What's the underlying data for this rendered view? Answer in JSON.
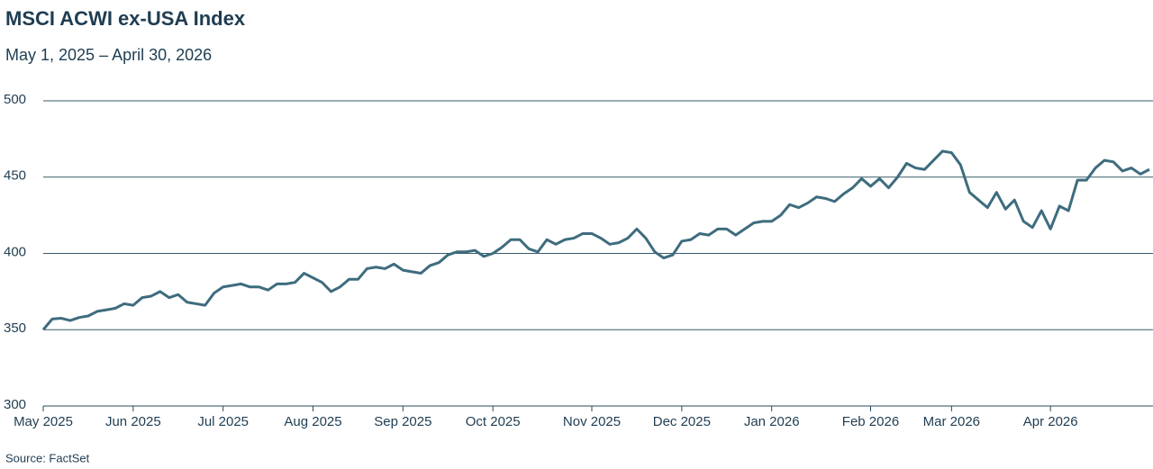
{
  "chart_data": {
    "type": "line",
    "title": "MSCI ACWI ex-USA Index",
    "subtitle": "May 1, 2025 – April 30, 2026",
    "source": "Source: FactSet",
    "categories": [
      "May 2025",
      null,
      null,
      null,
      null,
      null,
      null,
      null,
      null,
      null,
      "Jun 2025",
      null,
      null,
      null,
      null,
      null,
      null,
      null,
      null,
      null,
      "Jul 2025",
      null,
      null,
      null,
      null,
      null,
      null,
      null,
      null,
      null,
      "Aug 2025",
      null,
      null,
      null,
      null,
      null,
      null,
      null,
      null,
      null,
      "Sep 2025",
      null,
      null,
      null,
      null,
      null,
      null,
      null,
      null,
      null,
      "Oct 2025",
      null,
      null,
      null,
      null,
      null,
      null,
      null,
      null,
      null,
      null,
      "Nov 2025",
      null,
      null,
      null,
      null,
      null,
      null,
      null,
      null,
      null,
      "Dec 2025",
      null,
      null,
      null,
      null,
      null,
      null,
      null,
      null,
      null,
      "Jan 2026",
      null,
      null,
      null,
      null,
      null,
      null,
      null,
      null,
      null,
      null,
      "Feb 2026",
      null,
      null,
      null,
      null,
      null,
      null,
      null,
      null,
      "Mar 2026",
      null,
      null,
      null,
      null,
      null,
      null,
      null,
      null,
      null,
      null,
      "Apr 2026",
      null,
      null,
      null,
      null,
      null,
      null,
      null,
      null,
      null,
      null,
      null
    ],
    "series": [
      {
        "color": "#3e6c7e",
        "values": [
          350,
          357,
          357.5,
          356,
          358,
          359,
          362,
          363,
          364,
          367,
          366,
          371,
          372,
          375,
          371,
          373,
          368,
          367,
          366,
          374,
          378,
          379,
          380,
          378,
          378,
          376,
          380,
          380,
          381,
          387,
          384,
          381,
          375,
          378,
          383,
          383,
          390,
          391,
          390,
          393,
          389,
          388,
          387,
          392,
          394,
          399,
          401,
          401,
          402,
          398,
          400,
          404,
          409,
          409,
          403,
          401,
          409,
          406,
          409,
          410,
          413,
          413,
          410,
          406,
          407,
          410,
          416,
          410,
          401,
          397,
          399,
          408,
          409,
          413,
          412,
          416,
          416,
          412,
          416,
          420,
          421,
          421,
          425,
          432,
          430,
          433,
          437,
          436,
          434,
          439,
          443,
          449,
          444,
          449,
          443,
          450,
          459,
          456,
          455,
          461,
          467,
          466,
          458,
          440,
          435,
          430,
          440,
          429,
          435,
          421,
          417,
          428,
          416,
          431,
          428,
          448,
          448,
          456,
          461,
          460,
          454,
          456,
          452,
          455
        ]
      }
    ],
    "ylim": [
      300,
      500
    ],
    "yticks": [
      300,
      350,
      400,
      450,
      500
    ],
    "grid": true
  }
}
